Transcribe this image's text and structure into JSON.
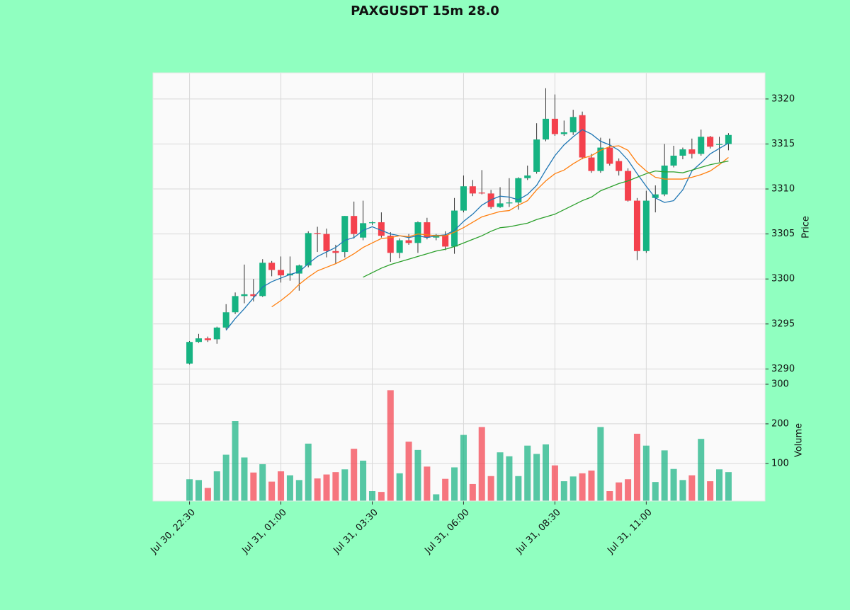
{
  "chart_data": {
    "type": "candlestick",
    "title": "PAXGUSDT 15m 28.0",
    "y_label": "Price",
    "volume_label": "Volume",
    "up_color": "#16b382",
    "down_color": "#f4414d",
    "grid": true,
    "xlim": [
      -4,
      63
    ],
    "xticks": [
      {
        "value": 0,
        "label": "Jul 30, 22:30"
      },
      {
        "value": 10,
        "label": "Jul 31, 01:00"
      },
      {
        "value": 20,
        "label": "Jul 31, 03:30"
      },
      {
        "value": 30,
        "label": "Jul 31, 06:00"
      },
      {
        "value": 40,
        "label": "Jul 31, 08:30"
      },
      {
        "value": 50,
        "label": "Jul 31, 11:00"
      }
    ],
    "ylim": [
      3288.3,
      3322.9
    ],
    "yticks": [
      3290,
      3295,
      3300,
      3305,
      3310,
      3315,
      3320
    ],
    "volume_ylim": [
      5,
      300
    ],
    "volume_yticks": [
      100,
      200,
      300
    ],
    "open": [
      3290.6,
      3293.0,
      3293.4,
      3293.3,
      3294.6,
      3296.3,
      3298.1,
      3298.3,
      3298.1,
      3301.8,
      3301.0,
      3300.4,
      3300.6,
      3301.5,
      3305.1,
      3305.0,
      3303.1,
      3303.0,
      3307.0,
      3304.6,
      3306.2,
      3306.3,
      3304.8,
      3302.9,
      3304.3,
      3304.0,
      3306.3,
      3304.6,
      3304.9,
      3303.6,
      3307.6,
      3310.3,
      3309.6,
      3309.5,
      3308.0,
      3308.4,
      3308.5,
      3311.2,
      3311.9,
      3315.5,
      3317.8,
      3316.1,
      3316.3,
      3318.2,
      3313.5,
      3312.0,
      3314.6,
      3313.1,
      3312.0,
      3308.7,
      3303.1,
      3309.0,
      3309.4,
      3312.6,
      3313.7,
      3314.4,
      3313.9,
      3315.8,
      3314.9,
      3315.0
    ],
    "high": [
      3293.1,
      3293.9,
      3293.6,
      3294.7,
      3297.2,
      3298.5,
      3301.6,
      3300.0,
      3302.2,
      3302.0,
      3302.5,
      3302.5,
      3301.6,
      3305.3,
      3305.8,
      3305.6,
      3303.8,
      3307.0,
      3308.6,
      3308.7,
      3306.4,
      3307.4,
      3305.2,
      3304.5,
      3305.0,
      3306.4,
      3306.8,
      3305.0,
      3305.3,
      3309.0,
      3311.5,
      3311.0,
      3312.1,
      3309.9,
      3310.2,
      3311.2,
      3311.3,
      3312.6,
      3317.3,
      3321.2,
      3320.5,
      3317.6,
      3318.8,
      3318.6,
      3313.9,
      3315.7,
      3315.6,
      3313.4,
      3312.3,
      3309.0,
      3309.8,
      3310.4,
      3315.0,
      3314.8,
      3314.6,
      3315.6,
      3316.6,
      3315.9,
      3315.8,
      3316.2
    ],
    "low": [
      3290.5,
      3292.9,
      3293.0,
      3292.8,
      3294.4,
      3296.1,
      3297.3,
      3297.5,
      3298.0,
      3300.3,
      3299.6,
      3299.8,
      3298.7,
      3301.3,
      3303.0,
      3302.4,
      3301.7,
      3302.4,
      3304.5,
      3304.3,
      3306.0,
      3304.6,
      3301.9,
      3302.3,
      3303.8,
      3302.9,
      3304.4,
      3304.3,
      3303.2,
      3302.8,
      3307.4,
      3309.2,
      3309.4,
      3307.8,
      3307.9,
      3308.0,
      3307.7,
      3311.0,
      3311.7,
      3315.3,
      3315.9,
      3315.9,
      3316.0,
      3313.3,
      3311.8,
      3311.8,
      3312.6,
      3311.5,
      3308.6,
      3302.1,
      3302.9,
      3307.4,
      3309.2,
      3312.4,
      3313.3,
      3313.4,
      3313.7,
      3314.5,
      3313.0,
      3314.3
    ],
    "close": [
      3293.0,
      3293.4,
      3293.2,
      3294.6,
      3296.3,
      3298.1,
      3298.3,
      3298.1,
      3301.8,
      3301.0,
      3300.4,
      3300.6,
      3301.5,
      3305.1,
      3305.0,
      3303.1,
      3302.9,
      3307.0,
      3305.0,
      3306.2,
      3306.3,
      3304.8,
      3302.9,
      3304.3,
      3304.0,
      3306.3,
      3304.6,
      3304.9,
      3303.6,
      3307.6,
      3310.3,
      3309.5,
      3309.5,
      3308.0,
      3308.4,
      3308.5,
      3311.2,
      3311.5,
      3315.5,
      3317.8,
      3316.1,
      3316.3,
      3318.0,
      3313.5,
      3312.0,
      3314.6,
      3312.8,
      3312.0,
      3308.7,
      3303.1,
      3308.7,
      3309.4,
      3312.6,
      3313.7,
      3314.4,
      3313.9,
      3315.8,
      3314.7,
      3315.0,
      3316.0
    ],
    "volume": [
      60,
      58,
      38,
      80,
      122,
      207,
      115,
      77,
      98,
      54,
      80,
      70,
      58,
      150,
      62,
      72,
      78,
      85,
      137,
      107,
      30,
      28,
      285,
      75,
      155,
      134,
      92,
      22,
      61,
      90,
      172,
      48,
      192,
      68,
      128,
      118,
      68,
      145,
      124,
      148,
      95,
      55,
      67,
      75,
      82,
      192,
      30,
      52,
      60,
      175,
      145,
      53,
      133,
      86,
      58,
      70,
      162,
      55,
      85,
      78
    ],
    "series": [
      {
        "color": "#1f77b4",
        "values": [
          null,
          null,
          null,
          null,
          3294.3,
          3295.6,
          3296.7,
          3297.9,
          3299.1,
          3299.7,
          3300.1,
          3300.5,
          3300.8,
          3301.7,
          3302.5,
          3303.0,
          3303.5,
          3304.3,
          3304.6,
          3305.4,
          3305.8,
          3305.4,
          3305.0,
          3304.8,
          3304.6,
          3304.8,
          3304.6,
          3304.8,
          3304.9,
          3305.4,
          3306.4,
          3307.2,
          3308.2,
          3308.8,
          3309.2,
          3309.1,
          3308.8,
          3309.4,
          3310.4,
          3312.1,
          3313.7,
          3314.9,
          3315.8,
          3316.6,
          3316.1,
          3315.3,
          3314.9,
          3314.3,
          3313.2,
          3311.7,
          3310.3,
          3309.0,
          3308.5,
          3308.7,
          3309.9,
          3312.0,
          3312.9,
          3313.9,
          3314.5,
          3315.1
        ]
      },
      {
        "color": "#ff7f0e",
        "values": [
          null,
          null,
          null,
          null,
          null,
          null,
          null,
          null,
          null,
          3296.9,
          3297.6,
          3298.4,
          3299.4,
          3300.2,
          3300.9,
          3301.3,
          3301.7,
          3302.2,
          3302.8,
          3303.5,
          3304.0,
          3304.5,
          3304.6,
          3304.8,
          3304.7,
          3305.0,
          3304.9,
          3304.8,
          3304.8,
          3305.2,
          3305.7,
          3306.3,
          3306.9,
          3307.2,
          3307.5,
          3307.6,
          3308.2,
          3308.7,
          3309.9,
          3310.9,
          3311.7,
          3312.1,
          3312.8,
          3313.4,
          3313.7,
          3314.3,
          3314.7,
          3314.8,
          3314.3,
          3312.9,
          3312.0,
          3311.3,
          3311.1,
          3311.1,
          3311.1,
          3311.3,
          3311.6,
          3312.0,
          3312.7,
          3313.5
        ]
      },
      {
        "color": "#2ca02c",
        "values": [
          null,
          null,
          null,
          null,
          null,
          null,
          null,
          null,
          null,
          null,
          null,
          null,
          null,
          null,
          null,
          null,
          null,
          null,
          null,
          3300.2,
          3300.7,
          3301.2,
          3301.6,
          3301.9,
          3302.2,
          3302.5,
          3302.8,
          3303.1,
          3303.3,
          3303.6,
          3304.0,
          3304.4,
          3304.8,
          3305.3,
          3305.7,
          3305.8,
          3306.0,
          3306.2,
          3306.6,
          3306.9,
          3307.2,
          3307.7,
          3308.2,
          3308.7,
          3309.1,
          3309.8,
          3310.2,
          3310.6,
          3310.9,
          3311.3,
          3311.7,
          3312.0,
          3311.9,
          3311.9,
          3311.8,
          3312.1,
          3312.4,
          3312.7,
          3312.9,
          3313.1
        ]
      }
    ]
  }
}
